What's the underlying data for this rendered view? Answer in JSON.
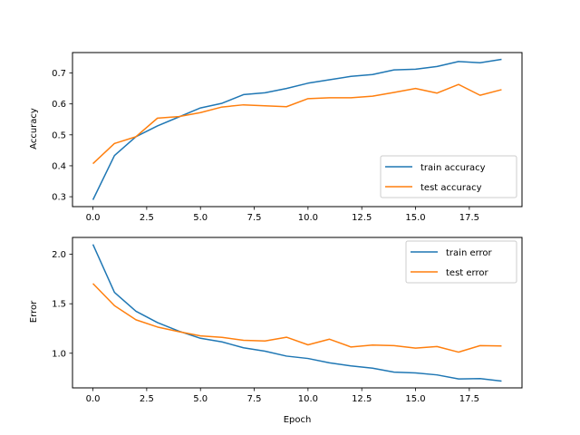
{
  "chart_data": [
    {
      "type": "line",
      "title": "",
      "xlabel": "",
      "ylabel": "Accuracy",
      "xlim": [
        -0.95,
        19.95
      ],
      "ylim": [
        0.268,
        0.766
      ],
      "xticks": [
        0.0,
        2.5,
        5.0,
        7.5,
        10.0,
        12.5,
        15.0,
        17.5
      ],
      "xtick_labels": [
        "0.0",
        "2.5",
        "5.0",
        "7.5",
        "10.0",
        "12.5",
        "15.0",
        "17.5"
      ],
      "yticks": [
        0.3,
        0.4,
        0.5,
        0.6,
        0.7
      ],
      "ytick_labels": [
        "0.3",
        "0.4",
        "0.5",
        "0.6",
        "0.7"
      ],
      "grid": false,
      "legend": "lower-right",
      "x": [
        0,
        1,
        2,
        3,
        4,
        5,
        6,
        7,
        8,
        9,
        10,
        11,
        12,
        13,
        14,
        15,
        16,
        17,
        18,
        19
      ],
      "series": [
        {
          "name": "train accuracy",
          "color": "#1f77b4",
          "values": [
            0.29,
            0.433,
            0.494,
            0.529,
            0.558,
            0.587,
            0.602,
            0.63,
            0.636,
            0.65,
            0.667,
            0.678,
            0.689,
            0.695,
            0.71,
            0.712,
            0.721,
            0.737,
            0.733,
            0.744
          ]
        },
        {
          "name": "test accuracy",
          "color": "#ff7f0e",
          "values": [
            0.407,
            0.472,
            0.494,
            0.554,
            0.559,
            0.572,
            0.59,
            0.597,
            0.594,
            0.591,
            0.617,
            0.62,
            0.62,
            0.625,
            0.637,
            0.65,
            0.635,
            0.663,
            0.628,
            0.646
          ]
        }
      ]
    },
    {
      "type": "line",
      "title": "",
      "xlabel": "Epoch",
      "ylabel": "Error",
      "xlim": [
        -0.95,
        19.95
      ],
      "ylim": [
        0.65,
        2.17
      ],
      "xticks": [
        0.0,
        2.5,
        5.0,
        7.5,
        10.0,
        12.5,
        15.0,
        17.5
      ],
      "xtick_labels": [
        "0.0",
        "2.5",
        "5.0",
        "7.5",
        "10.0",
        "12.5",
        "15.0",
        "17.5"
      ],
      "yticks": [
        1.0,
        1.5,
        2.0
      ],
      "ytick_labels": [
        "1.0",
        "1.5",
        "2.0"
      ],
      "grid": false,
      "legend": "upper-right",
      "x": [
        0,
        1,
        2,
        3,
        4,
        5,
        6,
        7,
        8,
        9,
        10,
        11,
        12,
        13,
        14,
        15,
        16,
        17,
        18,
        19
      ],
      "series": [
        {
          "name": "train error",
          "color": "#1f77b4",
          "values": [
            2.1,
            1.615,
            1.424,
            1.31,
            1.223,
            1.151,
            1.115,
            1.055,
            1.021,
            0.971,
            0.947,
            0.903,
            0.872,
            0.849,
            0.809,
            0.801,
            0.781,
            0.74,
            0.744,
            0.719
          ]
        },
        {
          "name": "test error",
          "color": "#ff7f0e",
          "values": [
            1.704,
            1.481,
            1.338,
            1.265,
            1.218,
            1.175,
            1.16,
            1.131,
            1.124,
            1.162,
            1.085,
            1.142,
            1.063,
            1.083,
            1.077,
            1.052,
            1.068,
            1.011,
            1.077,
            1.073
          ]
        }
      ]
    }
  ]
}
